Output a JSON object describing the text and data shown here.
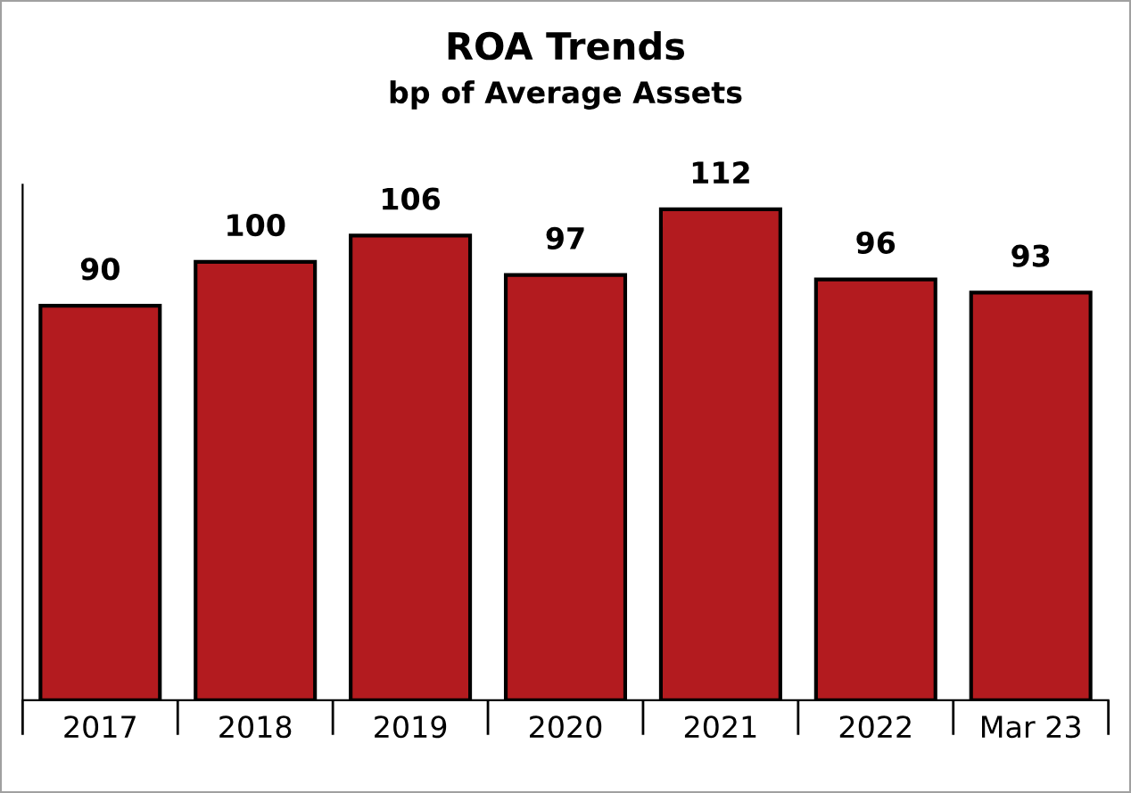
{
  "chart_data": {
    "type": "bar",
    "title": "ROA Trends",
    "subtitle": "bp of Average Assets",
    "categories": [
      "2017",
      "2018",
      "2019",
      "2020",
      "2021",
      "2022",
      "Mar 23"
    ],
    "values": [
      90,
      100,
      106,
      97,
      112,
      96,
      93
    ],
    "color": "#b31b1f",
    "data_labels": true,
    "tick_labels": "x",
    "grid": false,
    "legend": false
  }
}
